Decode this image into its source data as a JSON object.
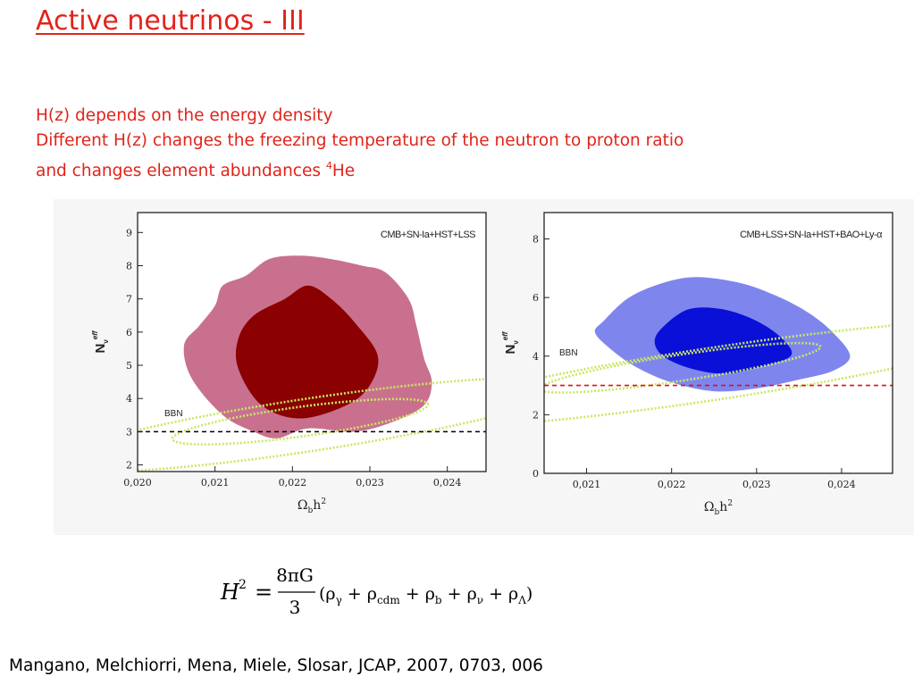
{
  "slide": {
    "title": "Active neutrinos - III",
    "lines": [
      "H(z) depends on the energy density",
      "Different H(z) changes the freezing temperature of the neutron to proton ratio",
      "and changes element abundances "
    ],
    "isotope_mass": "4",
    "isotope_symbol": "He",
    "citation": "Mangano, Melchiorri, Mena, Miele, Slosar, JCAP, 2007, 0703, 006"
  },
  "equation": {
    "lhs": "H",
    "lhs_exp": "2",
    "equals": "=",
    "numerator": "8πG",
    "denominator": "3",
    "rhs": "(ρ",
    "terms": [
      {
        "sub": "γ",
        "op": " + ρ"
      },
      {
        "sub": "cdm",
        "op": " + ρ"
      },
      {
        "sub": "b",
        "op": " + ρ"
      },
      {
        "sub": "ν",
        "op": " + ρ"
      },
      {
        "sub": "Λ",
        "op": ")"
      }
    ]
  },
  "chart_data": [
    {
      "type": "contour",
      "legend": "CMB+SN-Ia+HST+LSS",
      "xlabel": "Ω",
      "xlabel_sub": "b",
      "xlabel_rest": "h",
      "xlabel_sup": "2",
      "ylabel": "N",
      "ylabel_sub": "ν",
      "ylabel_sup": "eff",
      "xlim": [
        0.02,
        0.0245
      ],
      "ylim": [
        1.8,
        9.6
      ],
      "xticks": [
        "0,020",
        "0,021",
        "0,022",
        "0,023",
        "0,024"
      ],
      "yticks": [
        "2",
        "3",
        "4",
        "5",
        "6",
        "7",
        "8",
        "9"
      ],
      "annotation": "BBN",
      "reference_line_y": 3,
      "colors": {
        "outer": "#c9708f",
        "inner": "#8b0000",
        "bbn": "#c8e860",
        "reference": "#000000"
      },
      "regions": [
        {
          "level": "95%",
          "points": [
            [
              0.0215,
              3.0
            ],
            [
              0.0211,
              3.5
            ],
            [
              0.0207,
              4.6
            ],
            [
              0.0206,
              5.6
            ],
            [
              0.0208,
              6.2
            ],
            [
              0.021,
              6.8
            ],
            [
              0.0211,
              7.4
            ],
            [
              0.0214,
              7.7
            ],
            [
              0.0217,
              8.2
            ],
            [
              0.0221,
              8.3
            ],
            [
              0.0225,
              8.2
            ],
            [
              0.0229,
              8.0
            ],
            [
              0.0232,
              7.8
            ],
            [
              0.0235,
              7.0
            ],
            [
              0.0236,
              6.2
            ],
            [
              0.0237,
              5.2
            ],
            [
              0.0238,
              4.5
            ],
            [
              0.0237,
              3.8
            ],
            [
              0.0233,
              3.3
            ],
            [
              0.0228,
              3.0
            ],
            [
              0.0222,
              3.1
            ],
            [
              0.0218,
              2.8
            ]
          ]
        },
        {
          "level": "68%",
          "points": [
            [
              0.0216,
              3.8
            ],
            [
              0.0213,
              4.9
            ],
            [
              0.0213,
              5.8
            ],
            [
              0.0215,
              6.5
            ],
            [
              0.0219,
              7.0
            ],
            [
              0.0222,
              7.4
            ],
            [
              0.0225,
              7.0
            ],
            [
              0.0228,
              6.3
            ],
            [
              0.0231,
              5.3
            ],
            [
              0.023,
              4.4
            ],
            [
              0.0227,
              3.8
            ],
            [
              0.0221,
              3.4
            ]
          ]
        }
      ],
      "bbn_band": [
        {
          "center": [
            0.0221,
            3.3
          ],
          "rx": 0.00165,
          "ry": 0.45,
          "tilt_per_x": 0.18
        },
        {
          "center": [
            0.0222,
            3.2
          ],
          "rx": 0.0034,
          "ry": 0.8,
          "tilt_per_x": 0.2
        }
      ]
    },
    {
      "type": "contour",
      "legend": "CMB+LSS+SN-Ia+HST+BAO+Ly-α",
      "xlabel": "Ω",
      "xlabel_sub": "b",
      "xlabel_rest": "h",
      "xlabel_sup": "2",
      "ylabel": "N",
      "ylabel_sub": "ν",
      "ylabel_sup": "eff",
      "xlim": [
        0.0205,
        0.0246
      ],
      "ylim": [
        0,
        8.9
      ],
      "xticks": [
        "0,021",
        "0,022",
        "0,023",
        "0,024"
      ],
      "yticks": [
        "0",
        "2",
        "4",
        "6",
        "8"
      ],
      "annotation": "BBN",
      "reference_line_y": 3,
      "colors": {
        "outer": "#7e86ee",
        "inner": "#0a10d8",
        "bbn": "#c8e860",
        "reference": "#e01010"
      },
      "regions": [
        {
          "level": "95%",
          "points": [
            [
              0.0212,
              5.2
            ],
            [
              0.0215,
              6.0
            ],
            [
              0.0219,
              6.5
            ],
            [
              0.0223,
              6.7
            ],
            [
              0.0228,
              6.5
            ],
            [
              0.0232,
              6.1
            ],
            [
              0.0236,
              5.5
            ],
            [
              0.0239,
              4.8
            ],
            [
              0.0241,
              4.0
            ],
            [
              0.0239,
              3.5
            ],
            [
              0.0235,
              3.2
            ],
            [
              0.023,
              2.9
            ],
            [
              0.0225,
              2.8
            ],
            [
              0.022,
              3.1
            ],
            [
              0.0216,
              3.6
            ],
            [
              0.0213,
              4.2
            ],
            [
              0.0211,
              4.8
            ]
          ]
        },
        {
          "level": "68%",
          "points": [
            [
              0.0219,
              5.0
            ],
            [
              0.0222,
              5.6
            ],
            [
              0.0226,
              5.6
            ],
            [
              0.023,
              5.2
            ],
            [
              0.0233,
              4.6
            ],
            [
              0.0234,
              4.0
            ],
            [
              0.023,
              3.6
            ],
            [
              0.0226,
              3.4
            ],
            [
              0.0222,
              3.6
            ],
            [
              0.0219,
              4.0
            ],
            [
              0.0218,
              4.5
            ]
          ]
        }
      ],
      "bbn_band": [
        {
          "center": [
            0.0221,
            3.6
          ],
          "rx": 0.00165,
          "ry": 0.45,
          "tilt_per_x": 0.2
        },
        {
          "center": [
            0.0225,
            3.4
          ],
          "rx": 0.0036,
          "ry": 0.9,
          "tilt_per_x": 0.2
        }
      ]
    }
  ]
}
